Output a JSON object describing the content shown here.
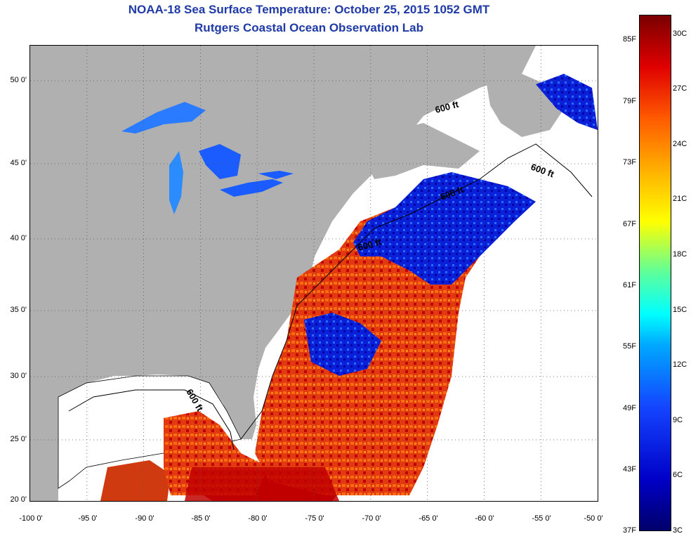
{
  "title": "NOAA-18 Sea Surface Temperature:  October 25, 2015 1052 GMT",
  "subtitle": "Rutgers Coastal Ocean Observation Lab",
  "map": {
    "longitude_labels": [
      "-100 0'",
      "-95 0'",
      "-90 0'",
      "-85 0'",
      "-80 0'",
      "-75 0'",
      "-70 0'",
      "-65 0'",
      "-60 0'",
      "-55 0'",
      "-50 0'"
    ],
    "latitude_labels": [
      "50 0'",
      "45 0'",
      "40 0'",
      "35 0'",
      "30 0'",
      "25 0'",
      "20 0'"
    ],
    "lon_range": [
      -100,
      -50
    ],
    "lat_range": [
      20,
      52
    ],
    "contour_label": "600 ft",
    "land_color": "#b0b0b0",
    "shelf_color": "#ffffff",
    "grid": "dotted"
  },
  "colorbar": {
    "fahrenheit_labels": [
      "85F",
      "79F",
      "73F",
      "67F",
      "61F",
      "55F",
      "49F",
      "43F",
      "37F"
    ],
    "celsius_labels": [
      "30C",
      "27C",
      "24C",
      "21C",
      "18C",
      "15C",
      "12C",
      "9C",
      "6C",
      "3C"
    ]
  }
}
